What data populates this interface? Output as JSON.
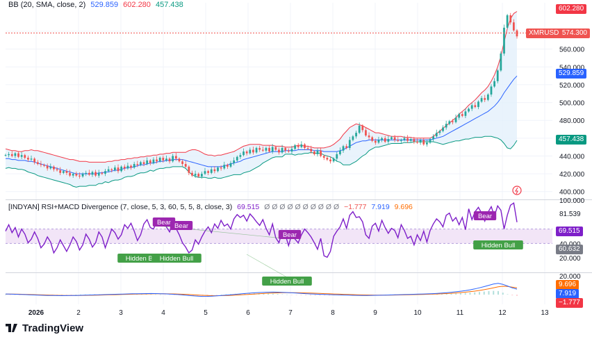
{
  "colors": {
    "up": "#26a69a",
    "down": "#ef5350",
    "upper_band": "#f23645",
    "lower_band": "#089981",
    "basis": "#2962ff",
    "rsi": "#7e1fc9",
    "band_fill": "#e3f0fb",
    "rsi_zone": "#f2e5f7",
    "bear_label": "#9c27b0",
    "bull_label": "#43a047",
    "macd": "#2962ff",
    "signal": "#ff6d00"
  },
  "legend_bb": {
    "name": "BB (20, SMA, close, 2)",
    "basis": "529.859",
    "upper": "602.280",
    "lower": "457.438"
  },
  "legend_osc": {
    "name": "[INDYAN] RSI+MACD Divergence (7, close, 5, 3, 60, 5, 5, 8, close, 3)",
    "v1": "69.515",
    "zeros": "Ø Ø Ø Ø Ø Ø Ø Ø Ø Ø",
    "v2": "−1.777",
    "v3": "7.919",
    "v4": "9.696"
  },
  "watermark": "TradingView",
  "price_tags": {
    "upper": "602.280",
    "symbol": "XMRUSD",
    "last": "574.300",
    "basis": "529.859",
    "lower": "457.438"
  },
  "osc_tags": {
    "rsi": "69.515",
    "level": "60.632",
    "v_orange": "9.696",
    "v_blue": "7.919",
    "v_red": "−1.777"
  },
  "chart_data": [
    {
      "type": "candlestick",
      "symbol": "XMRUSD",
      "x_ticks": [
        "2026",
        "2",
        "3",
        "4",
        "5",
        "6",
        "7",
        "8",
        "9",
        "10",
        "11",
        "12",
        "13"
      ],
      "y_ticks": [
        400,
        420,
        440,
        460,
        480,
        500,
        520,
        540,
        560,
        580
      ],
      "ylim": [
        392,
        612
      ],
      "last_price": 574.3,
      "close": [
        441,
        442,
        440,
        443,
        439,
        441,
        438,
        436,
        437,
        433,
        431,
        430,
        429,
        426,
        428,
        425,
        424,
        421,
        423,
        421,
        418,
        420,
        418,
        417,
        420,
        421,
        419,
        422,
        418,
        421,
        420,
        423,
        425,
        424,
        427,
        423,
        428,
        426,
        429,
        427,
        431,
        430,
        433,
        431,
        435,
        432,
        436,
        434,
        438,
        435,
        437,
        434,
        440,
        437,
        434,
        431,
        428,
        421,
        418,
        420,
        417,
        420,
        423,
        421,
        425,
        423,
        427,
        426,
        430,
        428,
        432,
        435,
        439,
        441,
        445,
        443,
        447,
        444,
        449,
        447,
        446,
        449,
        445,
        450,
        447,
        444,
        449,
        446,
        445,
        448,
        452,
        450,
        453,
        449,
        448,
        445,
        442,
        446,
        440,
        438,
        436,
        434,
        437,
        442,
        446,
        451,
        449,
        458,
        462,
        466,
        474,
        469,
        463,
        461,
        457,
        455,
        458,
        460,
        456,
        459,
        461,
        458,
        457,
        458,
        460,
        457,
        459,
        456,
        455,
        458,
        453,
        455,
        459,
        462,
        466,
        468,
        472,
        476,
        479,
        478,
        483,
        487,
        485,
        490,
        493,
        497,
        495,
        501,
        505,
        503,
        509,
        518,
        524,
        536,
        555,
        584,
        598,
        590,
        581,
        574.3
      ],
      "upper_band": [
        448,
        447,
        446,
        446,
        445,
        445,
        446,
        446,
        447,
        446,
        446,
        445,
        444,
        443,
        442,
        441,
        440,
        439,
        438,
        437,
        436,
        436,
        435,
        434,
        434,
        434,
        433,
        433,
        433,
        433,
        433,
        433,
        434,
        434,
        435,
        435,
        436,
        436,
        437,
        437,
        438,
        438,
        439,
        439,
        440,
        440,
        441,
        441,
        442,
        442,
        443,
        443,
        444,
        444,
        444,
        444,
        444,
        446,
        447,
        447,
        446,
        444,
        442,
        441,
        441,
        440,
        441,
        441,
        442,
        443,
        444,
        445,
        447,
        449,
        451,
        452,
        453,
        453,
        453,
        453,
        452,
        452,
        452,
        452,
        451,
        451,
        451,
        450,
        450,
        450,
        451,
        452,
        452,
        451,
        451,
        450,
        449,
        449,
        449,
        449,
        450,
        451,
        453,
        456,
        459,
        464,
        468,
        472,
        474,
        476,
        475,
        474,
        472,
        470,
        468,
        466,
        466,
        465,
        464,
        463,
        462,
        462,
        462,
        462,
        461,
        461,
        461,
        460,
        460,
        460,
        460,
        460,
        460,
        462,
        465,
        468,
        471,
        474,
        477,
        480,
        483,
        487,
        490,
        493,
        497,
        500,
        503,
        507,
        511,
        514,
        518,
        524,
        531,
        540,
        552,
        568,
        583,
        594,
        600,
        602.28
      ],
      "basis": [
        437,
        437,
        436,
        436,
        435,
        435,
        435,
        434,
        434,
        433,
        432,
        431,
        430,
        429,
        428,
        427,
        426,
        425,
        424,
        423,
        422,
        421,
        420,
        420,
        420,
        420,
        420,
        420,
        420,
        421,
        421,
        422,
        422,
        423,
        424,
        424,
        425,
        426,
        427,
        427,
        428,
        429,
        430,
        430,
        431,
        432,
        432,
        433,
        434,
        434,
        435,
        435,
        436,
        436,
        436,
        436,
        435,
        434,
        433,
        432,
        431,
        430,
        429,
        428,
        428,
        428,
        428,
        428,
        429,
        430,
        431,
        432,
        433,
        434,
        436,
        437,
        438,
        439,
        440,
        441,
        442,
        443,
        444,
        445,
        445,
        445,
        445,
        446,
        446,
        446,
        446,
        447,
        447,
        447,
        447,
        447,
        446,
        446,
        446,
        445,
        445,
        445,
        445,
        445,
        446,
        447,
        449,
        451,
        453,
        455,
        456,
        457,
        457,
        458,
        458,
        458,
        458,
        458,
        458,
        458,
        458,
        458,
        458,
        458,
        458,
        458,
        458,
        458,
        458,
        458,
        458,
        458,
        458,
        459,
        460,
        461,
        462,
        464,
        466,
        468,
        470,
        472,
        474,
        476,
        478,
        480,
        482,
        484,
        486,
        488,
        490,
        493,
        496,
        500,
        505,
        511,
        516,
        521,
        526,
        529.86
      ],
      "lower_band": [
        426,
        427,
        426,
        426,
        425,
        425,
        424,
        422,
        421,
        420,
        418,
        417,
        416,
        415,
        414,
        413,
        412,
        411,
        410,
        409,
        408,
        406,
        405,
        406,
        406,
        406,
        407,
        407,
        407,
        409,
        409,
        411,
        410,
        412,
        413,
        413,
        414,
        416,
        417,
        417,
        418,
        420,
        421,
        421,
        422,
        424,
        423,
        425,
        426,
        426,
        427,
        427,
        428,
        428,
        428,
        428,
        426,
        422,
        419,
        417,
        416,
        416,
        416,
        415,
        415,
        416,
        415,
        415,
        416,
        417,
        418,
        419,
        419,
        419,
        421,
        422,
        423,
        425,
        427,
        429,
        432,
        434,
        436,
        438,
        439,
        439,
        439,
        442,
        442,
        442,
        441,
        442,
        442,
        443,
        443,
        444,
        443,
        443,
        443,
        441,
        440,
        439,
        437,
        434,
        433,
        430,
        430,
        430,
        432,
        434,
        437,
        440,
        442,
        446,
        448,
        450,
        450,
        451,
        452,
        453,
        454,
        454,
        454,
        454,
        455,
        455,
        455,
        456,
        456,
        456,
        456,
        456,
        456,
        456,
        455,
        454,
        453,
        454,
        455,
        456,
        457,
        457,
        458,
        459,
        459,
        460,
        461,
        461,
        461,
        462,
        462,
        462,
        461,
        460,
        458,
        454,
        449,
        448,
        452,
        457.44
      ]
    },
    {
      "type": "line",
      "name": "RSI",
      "y_ticks": [
        20,
        40,
        60.632,
        81.539,
        100
      ],
      "ylim": [
        0,
        100
      ],
      "zone": [
        40,
        60
      ],
      "values": [
        57,
        66,
        55,
        62,
        49,
        60,
        53,
        41,
        46,
        56,
        47,
        34,
        39,
        49,
        42,
        27,
        34,
        45,
        37,
        29,
        38,
        49,
        43,
        31,
        38,
        53,
        46,
        35,
        41,
        56,
        49,
        34,
        47,
        60,
        55,
        46,
        52,
        66,
        61,
        68,
        57,
        44,
        52,
        67,
        73,
        62,
        60,
        70,
        65,
        74,
        63,
        56,
        69,
        61,
        52,
        41,
        35,
        27,
        31,
        45,
        39,
        49,
        57,
        63,
        55,
        67,
        61,
        72,
        64,
        67,
        60,
        74,
        80,
        76,
        79,
        71,
        81,
        76,
        70,
        65,
        73,
        61,
        52,
        67,
        48,
        41,
        57,
        52,
        37,
        53,
        46,
        41,
        52,
        60,
        55,
        49,
        41,
        32,
        47,
        23,
        21,
        29,
        50,
        57,
        63,
        74,
        61,
        79,
        84,
        76,
        77,
        70,
        52,
        47,
        64,
        68,
        57,
        72,
        62,
        54,
        61,
        58,
        48,
        66,
        58,
        47,
        50,
        38,
        52,
        44,
        57,
        42,
        58,
        67,
        74,
        70,
        63,
        79,
        82,
        71,
        76,
        66,
        76,
        59,
        88,
        73,
        84,
        90,
        82,
        71,
        83,
        91,
        78,
        92,
        86,
        60,
        79,
        93,
        96,
        69.515
      ]
    },
    {
      "type": "line",
      "name": "MACD",
      "series": [
        {
          "name": "MACD",
          "values": [
            0.9,
            0.7,
            0.5,
            0.3,
            0.1,
            -0.2,
            -0.5,
            -0.8,
            -1.0,
            -1.2,
            -1.3,
            -1.4,
            -1.5,
            -1.4,
            -1.3,
            -1.2,
            -1.0,
            -0.8,
            -0.6,
            -0.4,
            -0.2,
            0.0,
            0.2,
            0.4,
            0.6,
            0.8,
            1.0,
            1.2,
            1.3,
            1.4,
            1.5,
            1.6,
            1.5,
            1.3,
            1.1,
            0.8,
            0.4,
            0.0,
            -0.6,
            -1.2,
            -1.8,
            -2.3,
            -2.6,
            -2.5,
            -2.2,
            -1.8,
            -1.3,
            -0.8,
            -0.2,
            0.4,
            1.0,
            1.6,
            2.1,
            2.6,
            3.0,
            3.3,
            3.5,
            3.6,
            3.5,
            3.3,
            3.0,
            2.6,
            2.2,
            1.8,
            1.4,
            1.0,
            0.7,
            0.4,
            0.2,
            0.0,
            -0.2,
            -0.4,
            -0.6,
            -0.8,
            -1.0,
            -1.1,
            -1.2,
            -1.2,
            -1.1,
            -1.0,
            -0.9,
            -0.7,
            -0.5,
            -0.3,
            -0.1,
            0.1,
            0.3,
            0.5,
            0.7,
            0.9,
            1.1,
            1.4,
            1.8,
            2.3,
            2.8,
            3.4,
            4.1,
            4.9,
            5.8,
            6.9,
            8.2,
            9.8,
            11.5,
            13.4,
            15.2,
            16.3,
            14.8,
            12.4,
            9.7,
            7.919
          ]
        },
        {
          "name": "Signal",
          "values": [
            0.8,
            0.8,
            0.7,
            0.6,
            0.4,
            0.2,
            0.0,
            -0.2,
            -0.4,
            -0.6,
            -0.8,
            -1.0,
            -1.1,
            -1.2,
            -1.2,
            -1.2,
            -1.2,
            -1.1,
            -1.0,
            -0.9,
            -0.7,
            -0.5,
            -0.3,
            -0.2,
            0.0,
            0.2,
            0.4,
            0.6,
            0.8,
            0.9,
            1.0,
            1.1,
            1.2,
            1.2,
            1.2,
            1.1,
            1.0,
            0.8,
            0.5,
            0.2,
            -0.2,
            -0.6,
            -1.0,
            -1.3,
            -1.5,
            -1.6,
            -1.5,
            -1.4,
            -1.1,
            -0.8,
            -0.4,
            0.0,
            0.4,
            0.8,
            1.2,
            1.6,
            2.0,
            2.3,
            2.5,
            2.7,
            2.8,
            2.8,
            2.7,
            2.6,
            2.4,
            2.2,
            2.0,
            1.7,
            1.4,
            1.2,
            0.9,
            0.7,
            0.4,
            0.2,
            0.0,
            -0.2,
            -0.4,
            -0.5,
            -0.6,
            -0.7,
            -0.7,
            -0.7,
            -0.7,
            -0.6,
            -0.5,
            -0.4,
            -0.2,
            0.0,
            0.1,
            0.3,
            0.5,
            0.7,
            0.9,
            1.2,
            1.5,
            1.9,
            2.4,
            2.9,
            3.5,
            4.2,
            5.0,
            6.0,
            7.1,
            8.4,
            9.8,
            11.2,
            12.0,
            11.8,
            10.8,
            9.696
          ]
        }
      ],
      "histogram_last": -1.777
    }
  ],
  "labels": [
    {
      "text": "Bear",
      "kind": "bear"
    },
    {
      "text": "Bear",
      "kind": "bear"
    },
    {
      "text": "Bear",
      "kind": "bear"
    },
    {
      "text": "Bear",
      "kind": "bear"
    },
    {
      "text": "Hidden Bull",
      "kind": "bull"
    },
    {
      "text": "Hidden Bull",
      "kind": "bull"
    },
    {
      "text": "Hidden Bull",
      "kind": "bull"
    },
    {
      "text": "Hidden Bull",
      "kind": "bull"
    }
  ]
}
